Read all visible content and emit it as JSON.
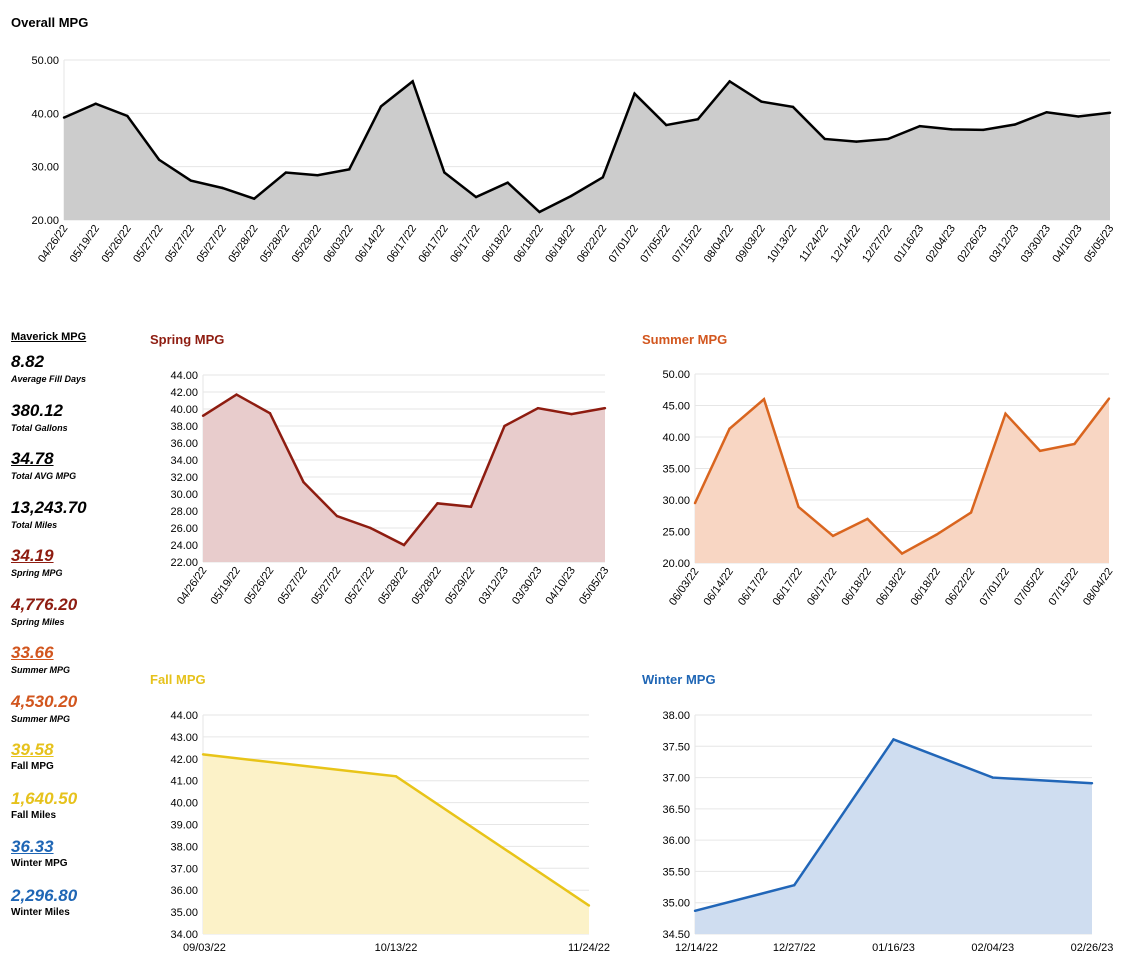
{
  "stats": {
    "heading": "Maverick MPG",
    "items": [
      {
        "value": "8.82",
        "label": "Average Fill Days",
        "color": "#000000",
        "underline": false,
        "italic_label": true
      },
      {
        "value": "380.12",
        "label": "Total Gallons",
        "color": "#000000",
        "underline": false,
        "italic_label": true
      },
      {
        "value": "34.78",
        "label": "Total AVG MPG",
        "color": "#000000",
        "underline": true,
        "italic_label": true
      },
      {
        "value": "13,243.70",
        "label": "Total Miles",
        "color": "#000000",
        "underline": false,
        "italic_label": true
      },
      {
        "value": "34.19",
        "label": "Spring MPG",
        "color": "#8e1c10",
        "underline": true,
        "italic_label": true
      },
      {
        "value": "4,776.20",
        "label": "Spring Miles",
        "color": "#8e1c10",
        "underline": false,
        "italic_label": true
      },
      {
        "value": "33.66",
        "label": "Summer MPG",
        "color": "#d2561e",
        "underline": true,
        "italic_label": true
      },
      {
        "value": "4,530.20",
        "label": "Summer MPG",
        "color": "#d2561e",
        "underline": false,
        "italic_label": true
      },
      {
        "value": "39.58",
        "label": "Fall MPG",
        "color": "#e6c21c",
        "underline": true,
        "italic_label": false
      },
      {
        "value": "1,640.50",
        "label": "Fall Miles",
        "color": "#e6c21c",
        "underline": false,
        "italic_label": false
      },
      {
        "value": "36.33",
        "label": "Winter MPG",
        "color": "#1f66b5",
        "underline": true,
        "italic_label": false
      },
      {
        "value": "2,296.80",
        "label": "Winter Miles",
        "color": "#1f66b5",
        "underline": false,
        "italic_label": false
      }
    ]
  },
  "chart_data": [
    {
      "id": "overall",
      "type": "area",
      "title": "Overall MPG",
      "title_color": "#000000",
      "line_color": "#000000",
      "fill_color": "#cccccc",
      "ylim": [
        20,
        50
      ],
      "yticks": [
        20,
        30,
        40,
        50
      ],
      "ytick_decimals": 2,
      "rotated_x": true,
      "grid": true,
      "categories": [
        "04/26/22",
        "05/19/22",
        "05/26/22",
        "05/27/22",
        "05/27/22",
        "05/27/22",
        "05/28/22",
        "05/28/22",
        "05/29/22",
        "06/03/22",
        "06/14/22",
        "06/17/22",
        "06/17/22",
        "06/17/22",
        "06/18/22",
        "06/18/22",
        "06/18/22",
        "06/22/22",
        "07/01/22",
        "07/05/22",
        "07/15/22",
        "08/04/22",
        "09/03/22",
        "10/13/22",
        "11/24/22",
        "12/14/22",
        "12/27/22",
        "01/16/23",
        "02/04/23",
        "02/26/23",
        "03/12/23",
        "03/30/23",
        "04/10/23",
        "05/05/23"
      ],
      "values": [
        39.2,
        41.8,
        39.5,
        31.3,
        27.4,
        26.0,
        24.0,
        28.9,
        28.4,
        29.5,
        41.3,
        46.0,
        28.9,
        24.3,
        27.0,
        21.5,
        24.5,
        28.0,
        43.7,
        37.8,
        38.9,
        46.0,
        42.2,
        41.2,
        35.2,
        34.7,
        35.2,
        37.6,
        37.0,
        36.9,
        37.9,
        40.2,
        39.4,
        40.1
      ]
    },
    {
      "id": "spring",
      "type": "area",
      "title": "Spring MPG",
      "title_color": "#8e1c10",
      "line_color": "#8e1c10",
      "fill_color": "#e8cccc",
      "ylim": [
        22,
        44
      ],
      "yticks": [
        22,
        24,
        26,
        28,
        30,
        32,
        34,
        36,
        38,
        40,
        42,
        44
      ],
      "ytick_decimals": 2,
      "rotated_x": true,
      "grid": true,
      "categories": [
        "04/26/22",
        "05/19/22",
        "05/26/22",
        "05/27/22",
        "05/27/22",
        "05/27/22",
        "05/28/22",
        "05/28/22",
        "05/29/22",
        "03/12/23",
        "03/30/23",
        "04/10/23",
        "05/05/23"
      ],
      "values": [
        39.2,
        41.7,
        39.5,
        31.4,
        27.4,
        26.0,
        24.0,
        28.9,
        28.5,
        38.0,
        40.1,
        39.4,
        40.1
      ]
    },
    {
      "id": "summer",
      "type": "area",
      "title": "Summer MPG",
      "title_color": "#d2561e",
      "line_color": "#d9651f",
      "fill_color": "#f8d6c3",
      "ylim": [
        20,
        50
      ],
      "yticks": [
        20,
        25,
        30,
        35,
        40,
        45,
        50
      ],
      "ytick_decimals": 2,
      "rotated_x": true,
      "grid": true,
      "categories": [
        "06/03/22",
        "06/14/22",
        "06/17/22",
        "06/17/22",
        "06/17/22",
        "06/18/22",
        "06/18/22",
        "06/18/22",
        "06/22/22",
        "07/01/22",
        "07/05/22",
        "07/15/22",
        "08/04/22"
      ],
      "values": [
        29.5,
        41.3,
        46.0,
        28.9,
        24.3,
        27.0,
        21.5,
        24.5,
        28.0,
        43.7,
        37.8,
        38.9,
        46.1
      ]
    },
    {
      "id": "fall",
      "type": "area",
      "title": "Fall MPG",
      "title_color": "#e6c21c",
      "line_color": "#e8c418",
      "fill_color": "#fcf2c8",
      "ylim": [
        34,
        44
      ],
      "yticks": [
        34,
        35,
        36,
        37,
        38,
        39,
        40,
        41,
        42,
        43,
        44
      ],
      "ytick_decimals": 2,
      "rotated_x": false,
      "grid": true,
      "categories": [
        "09/03/22",
        "10/13/22",
        "11/24/22"
      ],
      "values": [
        42.2,
        41.2,
        35.3
      ]
    },
    {
      "id": "winter",
      "type": "area",
      "title": "Winter MPG",
      "title_color": "#1f66b5",
      "line_color": "#2166b8",
      "fill_color": "#cfddf0",
      "ylim": [
        34.5,
        38
      ],
      "yticks": [
        34.5,
        35,
        35.5,
        36,
        36.5,
        37,
        37.5,
        38
      ],
      "ytick_decimals": 2,
      "rotated_x": false,
      "grid": true,
      "categories": [
        "12/14/22",
        "12/27/22",
        "01/16/23",
        "02/04/23",
        "02/26/23"
      ],
      "values": [
        34.87,
        35.28,
        37.61,
        37.0,
        36.91
      ]
    }
  ]
}
